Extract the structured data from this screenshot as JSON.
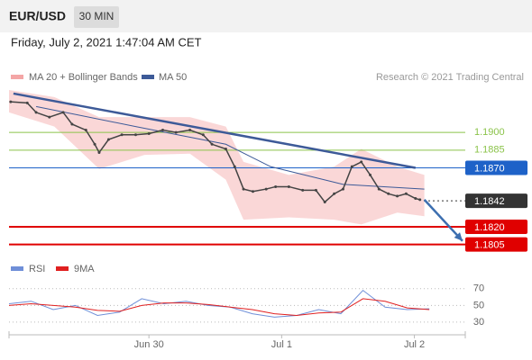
{
  "header": {
    "symbol": "EUR/USD",
    "timeframe": "30 MIN",
    "datetime": "Friday, July 2, 2021 1:47:04 AM CET",
    "credit": "Research © 2021 Trading Central"
  },
  "chart_data": [
    {
      "type": "line",
      "xlim": [
        0,
        82.5
      ],
      "ylim": [
        1.1791,
        1.1936
      ],
      "price": {
        "color": "#444444",
        "x": [
          0.3,
          3.3,
          4.9,
          7.3,
          9.8,
          11.4,
          13.9,
          15.5,
          16.3,
          18,
          20.4,
          22.9,
          25.3,
          27.8,
          30.2,
          32.7,
          35.1,
          36.7,
          39.2,
          40.8,
          42.4,
          44.1,
          46.5,
          48.2,
          50.6,
          53.1,
          55.5,
          57.1,
          58.8,
          60.4,
          62,
          63.7,
          65.3,
          66.9,
          68.6,
          70.2,
          71.8,
          73.5,
          74.3
        ],
        "values": [
          1.1926,
          1.1925,
          1.1917,
          1.1913,
          1.1917,
          1.1907,
          1.1902,
          1.189,
          1.1883,
          1.1894,
          1.1898,
          1.1898,
          1.1899,
          1.1902,
          1.19,
          1.1902,
          1.1898,
          1.189,
          1.1886,
          1.1871,
          1.1852,
          1.185,
          1.1852,
          1.1854,
          1.1854,
          1.1851,
          1.1851,
          1.1841,
          1.1848,
          1.1852,
          1.1871,
          1.1875,
          1.1864,
          1.1852,
          1.1848,
          1.1846,
          1.1848,
          1.1844,
          1.1843
        ]
      },
      "band": {
        "name": "MA 20 + Bollinger Bands",
        "color": "#f4a6a6",
        "x": [
          0,
          8.2,
          16.3,
          24.5,
          32.7,
          39.2,
          42.4,
          50.6,
          58.8,
          63.7,
          70.2,
          75.1
        ],
        "upper": [
          1.1936,
          1.193,
          1.1913,
          1.1913,
          1.1913,
          1.1905,
          1.1875,
          1.1864,
          1.1871,
          1.1886,
          1.1871,
          1.1864
        ],
        "lower": [
          1.1917,
          1.1905,
          1.1869,
          1.1881,
          1.1882,
          1.186,
          1.1826,
          1.1828,
          1.1826,
          1.1822,
          1.1832,
          1.1829
        ]
      },
      "series": [
        {
          "name": "MA 50",
          "color": "#3d5a98",
          "x": [
            4.9,
            22.9,
            39.2,
            47.3,
            60.4,
            75.1
          ],
          "values": [
            1.1922,
            1.1905,
            1.189,
            1.1871,
            1.1856,
            1.1852
          ]
        }
      ],
      "trendline": {
        "color": "#3d5a98",
        "x": [
          0.8,
          73.5
        ],
        "values": [
          1.1933,
          1.187
        ]
      },
      "forecast_arrow": {
        "color": "#3d6fb0",
        "x": [
          75.1,
          82
        ],
        "values": [
          1.1843,
          1.1808
        ]
      },
      "levels": [
        {
          "value": 1.19,
          "label": "1.1900",
          "color": "#8bc34a",
          "style": "text",
          "line": "solid"
        },
        {
          "value": 1.1885,
          "label": "1.1885",
          "color": "#8bc34a",
          "style": "text",
          "line": "solid"
        },
        {
          "value": 1.187,
          "label": "1.1870",
          "color": "#1e62c8",
          "style": "badge",
          "line": "solid"
        },
        {
          "value": 1.1842,
          "label": "1.1842",
          "color": "#333333",
          "style": "badge",
          "line": "dotted"
        },
        {
          "value": 1.182,
          "label": "1.1820",
          "color": "#e00000",
          "style": "badge",
          "line": "bold"
        },
        {
          "value": 1.1805,
          "label": "1.1805",
          "color": "#e00000",
          "style": "badge",
          "line": "bold"
        }
      ]
    },
    {
      "type": "line",
      "xlim": [
        0,
        82.5
      ],
      "ylim": [
        17,
        87
      ],
      "yticks": [
        70,
        50,
        30
      ],
      "xticks": [
        {
          "value": 25.3,
          "label": "Jun 30"
        },
        {
          "value": 49.3,
          "label": "Jul 1"
        },
        {
          "value": 73.3,
          "label": "Jul 2"
        }
      ],
      "series": [
        {
          "name": "RSI",
          "color": "#6f8fd8",
          "x": [
            0,
            4,
            8,
            12,
            16,
            20,
            24,
            28,
            32,
            36,
            40,
            44,
            48,
            52,
            56,
            60,
            64,
            68,
            72,
            76
          ],
          "values": [
            52,
            55,
            45,
            50,
            38,
            42,
            58,
            52,
            55,
            50,
            48,
            40,
            36,
            38,
            45,
            40,
            68,
            48,
            45,
            46
          ]
        },
        {
          "name": "9MA",
          "color": "#e02020",
          "x": [
            0,
            4,
            8,
            12,
            16,
            20,
            24,
            28,
            32,
            36,
            40,
            44,
            48,
            52,
            56,
            60,
            64,
            68,
            72,
            76
          ],
          "values": [
            50,
            52,
            50,
            48,
            44,
            43,
            50,
            53,
            53,
            51,
            48,
            45,
            40,
            38,
            41,
            42,
            58,
            55,
            47,
            45
          ]
        }
      ]
    }
  ]
}
